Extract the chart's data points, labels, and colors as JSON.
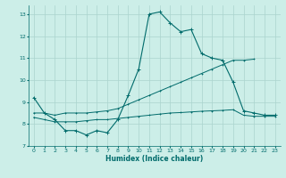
{
  "xlabel": "Humidex (Indice chaleur)",
  "xlim": [
    -0.5,
    23.5
  ],
  "ylim": [
    7,
    13.4
  ],
  "yticks": [
    7,
    8,
    9,
    10,
    11,
    12,
    13
  ],
  "xticks": [
    0,
    1,
    2,
    3,
    4,
    5,
    6,
    7,
    8,
    9,
    10,
    11,
    12,
    13,
    14,
    15,
    16,
    17,
    18,
    19,
    20,
    21,
    22,
    23
  ],
  "bg_color": "#cceee8",
  "grid_color": "#aad4ce",
  "line_color": "#006b6b",
  "series1_x": [
    0,
    1,
    2,
    3,
    4,
    5,
    6,
    7,
    8,
    9,
    10,
    11,
    12,
    13,
    14,
    15,
    16,
    17,
    18,
    19,
    20,
    21,
    22,
    23
  ],
  "series1_y": [
    9.2,
    8.5,
    8.2,
    7.7,
    7.7,
    7.5,
    7.7,
    7.6,
    8.2,
    9.3,
    10.5,
    13.0,
    13.1,
    12.6,
    12.2,
    12.3,
    11.2,
    11.0,
    10.9,
    9.9,
    8.6,
    8.5,
    8.4,
    8.4
  ],
  "series2_x": [
    0,
    1,
    2,
    3,
    4,
    5,
    6,
    7,
    8,
    9,
    10,
    11,
    12,
    13,
    14,
    15,
    16,
    17,
    18,
    19,
    20,
    21
  ],
  "series2_y": [
    8.5,
    8.5,
    8.4,
    8.5,
    8.5,
    8.5,
    8.55,
    8.6,
    8.7,
    8.9,
    9.1,
    9.3,
    9.5,
    9.7,
    9.9,
    10.1,
    10.3,
    10.5,
    10.7,
    10.9,
    10.9,
    10.95
  ],
  "series3_x": [
    0,
    1,
    2,
    3,
    4,
    5,
    6,
    7,
    8,
    9,
    10,
    11,
    12,
    13,
    14,
    15,
    16,
    17,
    18,
    19,
    20,
    21,
    22,
    23
  ],
  "series3_y": [
    8.3,
    8.2,
    8.1,
    8.1,
    8.1,
    8.15,
    8.2,
    8.2,
    8.25,
    8.3,
    8.35,
    8.4,
    8.45,
    8.5,
    8.52,
    8.55,
    8.58,
    8.6,
    8.62,
    8.65,
    8.4,
    8.35,
    8.35,
    8.35
  ]
}
